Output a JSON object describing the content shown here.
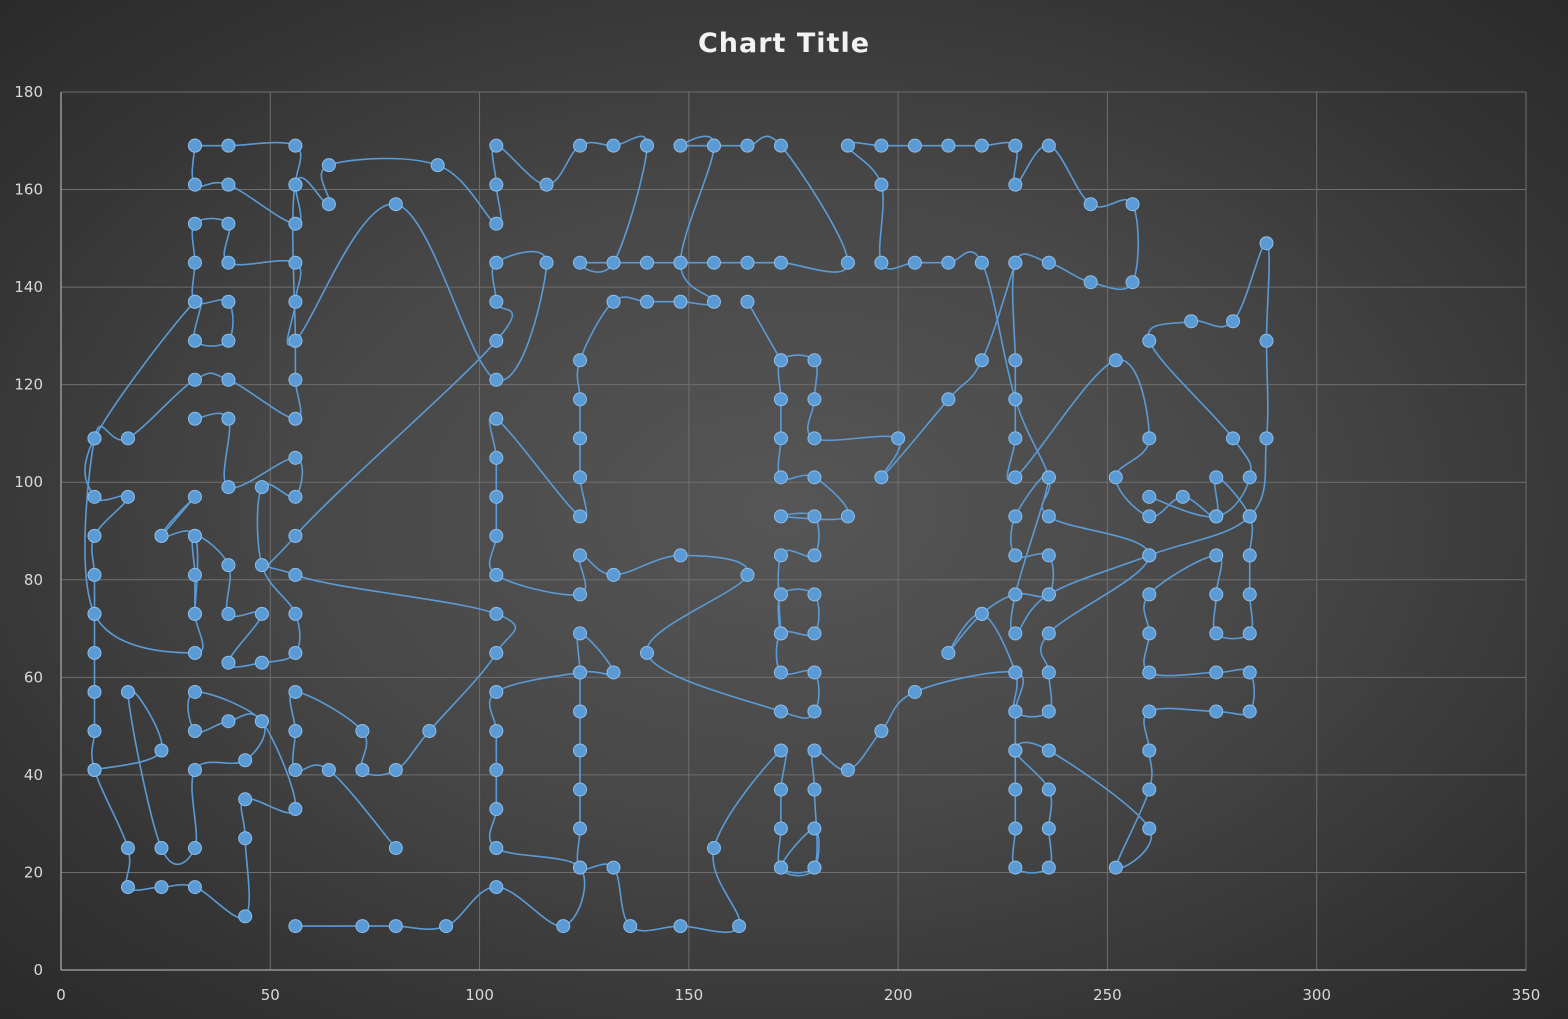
{
  "chart_data": {
    "type": "scatter",
    "title": "Chart Title",
    "xlabel": "",
    "ylabel": "",
    "xlim": [
      0,
      350
    ],
    "ylim": [
      0,
      180
    ],
    "x_ticks": [
      0,
      50,
      100,
      150,
      200,
      250,
      300,
      350
    ],
    "y_ticks": [
      0,
      20,
      40,
      60,
      80,
      100,
      120,
      140,
      160,
      180
    ],
    "grid": true,
    "legend": "none",
    "line_style": "smoothed lines with markers",
    "series_color": "#5b9bd5",
    "series": [
      {
        "points": [
          [
            56,
            9
          ],
          [
            72,
            9
          ],
          [
            80,
            9
          ],
          [
            92,
            9
          ],
          [
            104,
            17
          ],
          [
            120,
            9
          ],
          [
            124,
            21
          ],
          [
            104,
            25
          ],
          [
            104,
            33
          ],
          [
            104,
            41
          ],
          [
            104,
            49
          ],
          [
            104,
            57
          ],
          [
            124,
            61
          ],
          [
            132,
            61
          ],
          [
            124,
            69
          ],
          [
            124,
            61
          ],
          [
            124,
            53
          ],
          [
            124,
            45
          ],
          [
            124,
            37
          ],
          [
            124,
            29
          ],
          [
            124,
            21
          ],
          [
            132,
            21
          ],
          [
            136,
            9
          ],
          [
            148,
            9
          ],
          [
            162,
            9
          ],
          [
            156,
            25
          ],
          [
            172,
            45
          ],
          [
            172,
            37
          ],
          [
            172,
            29
          ],
          [
            172,
            21
          ],
          [
            180,
            21
          ],
          [
            180,
            29
          ],
          [
            172,
            21
          ],
          [
            180,
            21
          ],
          [
            180,
            37
          ],
          [
            180,
            45
          ],
          [
            188,
            41
          ],
          [
            196,
            49
          ],
          [
            204,
            57
          ],
          [
            228,
            61
          ],
          [
            228,
            53
          ],
          [
            228,
            45
          ],
          [
            228,
            37
          ],
          [
            228,
            29
          ],
          [
            228,
            21
          ],
          [
            236,
            21
          ],
          [
            236,
            29
          ],
          [
            236,
            37
          ],
          [
            228,
            45
          ],
          [
            236,
            45
          ],
          [
            260,
            29
          ],
          [
            252,
            21
          ],
          [
            260,
            37
          ],
          [
            260,
            45
          ],
          [
            260,
            53
          ],
          [
            276,
            53
          ],
          [
            284,
            53
          ],
          [
            284,
            61
          ],
          [
            276,
            61
          ],
          [
            260,
            61
          ],
          [
            260,
            69
          ],
          [
            260,
            77
          ],
          [
            276,
            85
          ],
          [
            276,
            77
          ],
          [
            276,
            69
          ],
          [
            284,
            69
          ],
          [
            284,
            77
          ],
          [
            284,
            85
          ],
          [
            284,
            93
          ],
          [
            276,
            101
          ],
          [
            276,
            93
          ],
          [
            268,
            97
          ],
          [
            260,
            93
          ],
          [
            252,
            101
          ],
          [
            260,
            109
          ],
          [
            252,
            125
          ],
          [
            228,
            101
          ],
          [
            228,
            109
          ],
          [
            228,
            117
          ],
          [
            228,
            125
          ],
          [
            228,
            145
          ],
          [
            236,
            145
          ],
          [
            246,
            141
          ],
          [
            256,
            141
          ],
          [
            256,
            157
          ],
          [
            246,
            157
          ],
          [
            236,
            169
          ],
          [
            228,
            161
          ],
          [
            228,
            169
          ],
          [
            220,
            169
          ],
          [
            212,
            169
          ],
          [
            204,
            169
          ],
          [
            196,
            169
          ],
          [
            188,
            169
          ],
          [
            196,
            161
          ],
          [
            196,
            145
          ],
          [
            204,
            145
          ],
          [
            212,
            145
          ],
          [
            220,
            145
          ],
          [
            228,
            117
          ],
          [
            236,
            101
          ],
          [
            236,
            93
          ],
          [
            260,
            85
          ],
          [
            236,
            69
          ],
          [
            236,
            61
          ],
          [
            236,
            53
          ],
          [
            228,
            53
          ],
          [
            228,
            61
          ],
          [
            220,
            73
          ],
          [
            212,
            65
          ],
          [
            220,
            73
          ],
          [
            228,
            77
          ],
          [
            236,
            77
          ],
          [
            236,
            85
          ],
          [
            228,
            85
          ],
          [
            228,
            93
          ],
          [
            236,
            101
          ],
          [
            228,
            77
          ],
          [
            228,
            69
          ],
          [
            236,
            77
          ],
          [
            260,
            85
          ],
          [
            284,
            93
          ],
          [
            288,
            109
          ],
          [
            288,
            129
          ],
          [
            288,
            149
          ],
          [
            280,
            133
          ],
          [
            270,
            133
          ],
          [
            260,
            129
          ],
          [
            280,
            109
          ],
          [
            284,
            101
          ],
          [
            276,
            93
          ],
          [
            260,
            97
          ]
        ]
      },
      {
        "points": [
          [
            80,
            25
          ],
          [
            64,
            41
          ],
          [
            56,
            41
          ],
          [
            56,
            49
          ],
          [
            56,
            57
          ],
          [
            72,
            49
          ],
          [
            72,
            41
          ],
          [
            80,
            41
          ],
          [
            88,
            49
          ],
          [
            104,
            65
          ],
          [
            104,
            73
          ],
          [
            56,
            81
          ],
          [
            56,
            89
          ],
          [
            104,
            129
          ],
          [
            104,
            137
          ],
          [
            104,
            145
          ],
          [
            116,
            145
          ],
          [
            104,
            121
          ],
          [
            80,
            157
          ],
          [
            56,
            129
          ],
          [
            56,
            137
          ],
          [
            56,
            145
          ],
          [
            40,
            145
          ],
          [
            40,
            153
          ],
          [
            32,
            153
          ],
          [
            32,
            145
          ],
          [
            32,
            137
          ],
          [
            40,
            137
          ],
          [
            40,
            129
          ],
          [
            32,
            129
          ],
          [
            32,
            137
          ],
          [
            8,
            109
          ],
          [
            8,
            97
          ],
          [
            16,
            97
          ],
          [
            8,
            89
          ],
          [
            8,
            81
          ],
          [
            8,
            73
          ],
          [
            8,
            65
          ],
          [
            8,
            57
          ],
          [
            8,
            49
          ],
          [
            8,
            41
          ],
          [
            16,
            25
          ],
          [
            16,
            17
          ],
          [
            24,
            17
          ],
          [
            32,
            17
          ],
          [
            44,
            11
          ],
          [
            44,
            27
          ],
          [
            44,
            35
          ],
          [
            56,
            33
          ],
          [
            48,
            51
          ],
          [
            40,
            51
          ],
          [
            32,
            49
          ],
          [
            32,
            57
          ],
          [
            48,
            51
          ],
          [
            44,
            43
          ],
          [
            32,
            41
          ],
          [
            32,
            25
          ],
          [
            24,
            25
          ],
          [
            16,
            57
          ],
          [
            24,
            45
          ],
          [
            8,
            41
          ]
        ]
      },
      {
        "points": [
          [
            32,
            113
          ],
          [
            40,
            113
          ],
          [
            40,
            99
          ],
          [
            56,
            105
          ],
          [
            56,
            97
          ],
          [
            48,
            99
          ],
          [
            48,
            83
          ],
          [
            56,
            73
          ],
          [
            56,
            65
          ],
          [
            48,
            63
          ],
          [
            40,
            63
          ],
          [
            48,
            73
          ],
          [
            40,
            73
          ],
          [
            40,
            83
          ],
          [
            32,
            89
          ],
          [
            32,
            81
          ],
          [
            32,
            73
          ],
          [
            32,
            65
          ],
          [
            8,
            73
          ],
          [
            8,
            109
          ],
          [
            16,
            109
          ],
          [
            32,
            121
          ],
          [
            40,
            121
          ],
          [
            56,
            113
          ],
          [
            56,
            121
          ],
          [
            56,
            129
          ],
          [
            56,
            161
          ],
          [
            64,
            157
          ],
          [
            64,
            165
          ],
          [
            90,
            165
          ],
          [
            104,
            153
          ],
          [
            104,
            161
          ],
          [
            104,
            169
          ],
          [
            116,
            161
          ],
          [
            124,
            169
          ],
          [
            132,
            169
          ],
          [
            140,
            169
          ],
          [
            132,
            145
          ],
          [
            124,
            145
          ],
          [
            140,
            145
          ],
          [
            148,
            145
          ],
          [
            156,
            145
          ],
          [
            164,
            145
          ],
          [
            172,
            145
          ],
          [
            188,
            145
          ],
          [
            172,
            169
          ],
          [
            164,
            169
          ],
          [
            156,
            169
          ],
          [
            148,
            169
          ],
          [
            156,
            169
          ],
          [
            148,
            145
          ],
          [
            156,
            137
          ],
          [
            148,
            137
          ],
          [
            140,
            137
          ],
          [
            132,
            137
          ],
          [
            124,
            125
          ],
          [
            124,
            117
          ],
          [
            124,
            109
          ],
          [
            124,
            101
          ],
          [
            124,
            93
          ],
          [
            104,
            113
          ],
          [
            104,
            105
          ],
          [
            104,
            97
          ],
          [
            104,
            89
          ],
          [
            104,
            81
          ],
          [
            124,
            77
          ],
          [
            124,
            85
          ],
          [
            132,
            81
          ],
          [
            148,
            85
          ],
          [
            164,
            81
          ],
          [
            140,
            65
          ],
          [
            172,
            53
          ],
          [
            180,
            53
          ],
          [
            180,
            61
          ],
          [
            172,
            61
          ],
          [
            172,
            69
          ],
          [
            180,
            69
          ],
          [
            180,
            77
          ],
          [
            172,
            77
          ],
          [
            172,
            69
          ],
          [
            172,
            85
          ],
          [
            180,
            85
          ],
          [
            180,
            93
          ],
          [
            172,
            93
          ],
          [
            188,
            93
          ],
          [
            180,
            101
          ],
          [
            172,
            101
          ],
          [
            172,
            109
          ],
          [
            172,
            117
          ],
          [
            172,
            125
          ],
          [
            180,
            125
          ],
          [
            180,
            117
          ],
          [
            180,
            109
          ],
          [
            200,
            109
          ],
          [
            196,
            101
          ],
          [
            212,
            117
          ],
          [
            220,
            125
          ],
          [
            228,
            145
          ]
        ]
      },
      {
        "points": [
          [
            32,
            169
          ],
          [
            40,
            169
          ],
          [
            56,
            169
          ],
          [
            56,
            161
          ],
          [
            56,
            153
          ],
          [
            40,
            161
          ],
          [
            32,
            161
          ],
          [
            32,
            169
          ]
        ]
      },
      {
        "points": [
          [
            164,
            137
          ],
          [
            172,
            125
          ]
        ]
      },
      {
        "points": [
          [
            24,
            89
          ],
          [
            32,
            97
          ],
          [
            24,
            89
          ],
          [
            32,
            89
          ],
          [
            32,
            73
          ]
        ]
      }
    ]
  }
}
